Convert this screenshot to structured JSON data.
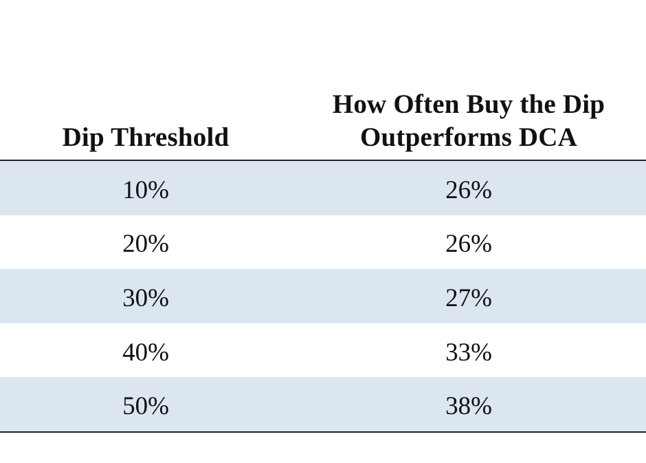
{
  "table": {
    "headers": {
      "col1": "Dip Threshold",
      "col2_line1": "How Often Buy the Dip",
      "col2_line2": "Outperforms DCA"
    },
    "rows": [
      {
        "threshold": "10%",
        "outperform": "26%"
      },
      {
        "threshold": "20%",
        "outperform": "26%"
      },
      {
        "threshold": "30%",
        "outperform": "27%"
      },
      {
        "threshold": "40%",
        "outperform": "33%"
      },
      {
        "threshold": "50%",
        "outperform": "38%"
      }
    ]
  },
  "colors": {
    "row_shade": "#dce6f0",
    "rule": "#222222",
    "text": "#111111"
  }
}
